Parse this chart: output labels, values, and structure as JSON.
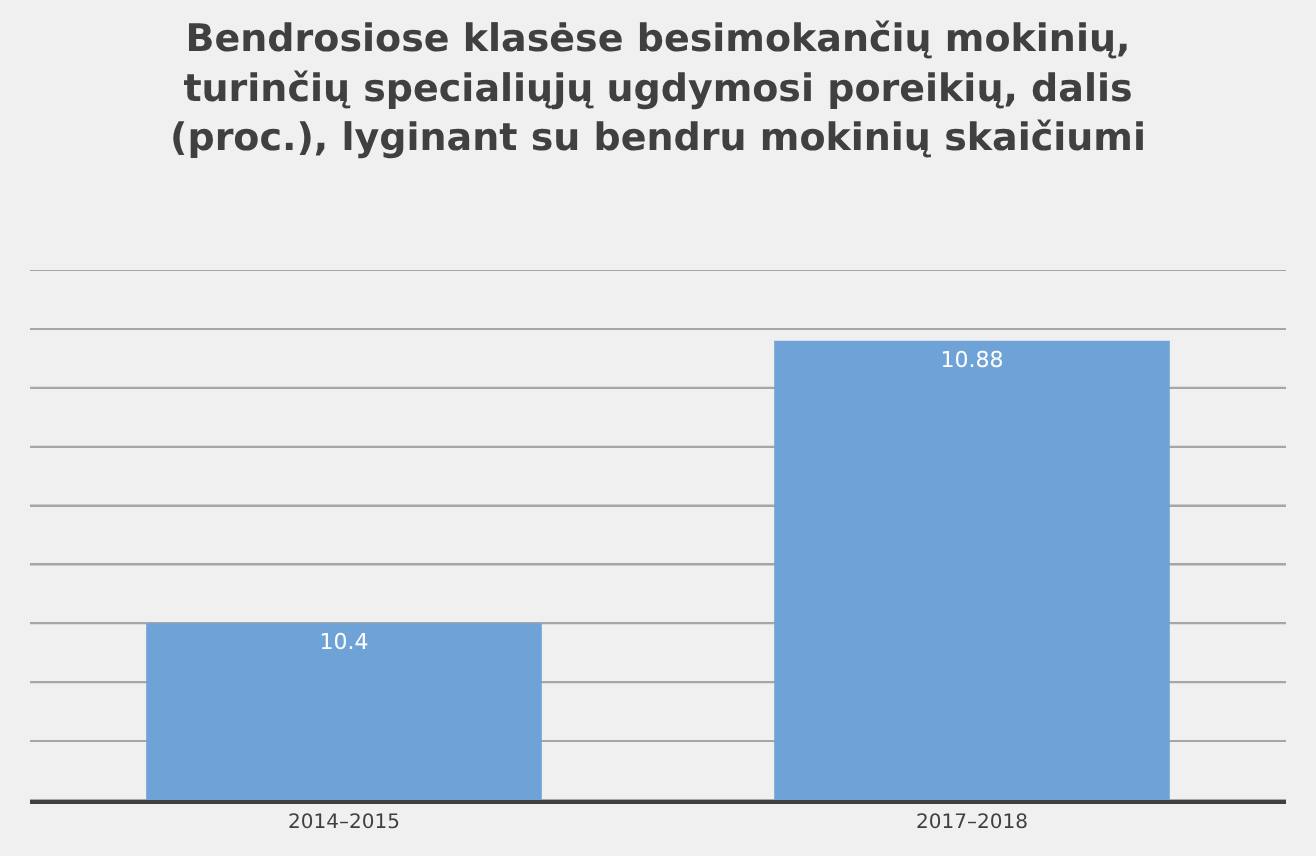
{
  "chart_data": {
    "type": "bar",
    "title": "Bendrosiose klasėse besimokančių mokinių,\nturinčių specialiųjų ugdymosi poreikių, dalis\n(proc.), lyginant su bendru mokinių skaičiumi",
    "categories": [
      "2014–2015",
      "2017–2018"
    ],
    "values": [
      10.4,
      10.88
    ],
    "color": "#6fa3d8",
    "data_labels": true,
    "ylim": [
      10.1,
      11.0
    ],
    "yticks": [
      {
        "value": 10.1,
        "label": null
      },
      {
        "value": 10.2,
        "label": null
      },
      {
        "value": 10.3,
        "label": null
      },
      {
        "value": 10.4,
        "label": null
      },
      {
        "value": 10.5,
        "label": null
      },
      {
        "value": 10.6,
        "label": null
      },
      {
        "value": 10.7,
        "label": null
      },
      {
        "value": 10.8,
        "label": null
      },
      {
        "value": 10.9,
        "label": null
      },
      {
        "value": 11.0,
        "label": null
      }
    ],
    "tick_labels": "x",
    "grid": "y"
  }
}
